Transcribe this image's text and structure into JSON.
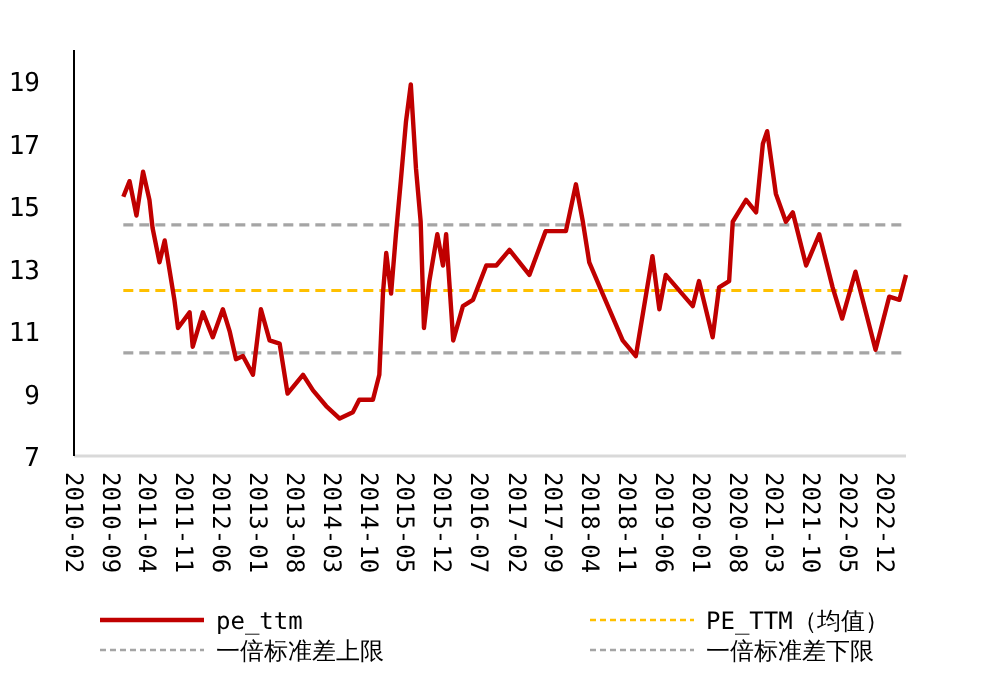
{
  "chart_data": {
    "type": "line",
    "legend": "bottom",
    "xlim": [
      "2010-02",
      "2023-04"
    ],
    "ylim": [
      7,
      20
    ],
    "yticks": [
      7,
      9,
      11,
      13,
      15,
      17,
      19
    ],
    "xticks": [
      "2010-02",
      "2010-09",
      "2011-04",
      "2011-11",
      "2012-06",
      "2013-01",
      "2013-08",
      "2014-03",
      "2014-10",
      "2015-05",
      "2015-12",
      "2016-07",
      "2017-02",
      "2017-09",
      "2018-04",
      "2018-11",
      "2019-06",
      "2020-01",
      "2020-08",
      "2021-03",
      "2021-10",
      "2022-05",
      "2022-12"
    ],
    "series": [
      {
        "name": "pe_ttm",
        "color": "#c00000",
        "line_style": "solid",
        "x": [
          "2010-11-13",
          "2010-12-19",
          "2011-01-28",
          "2011-03-07",
          "2011-04-13",
          "2011-05-01",
          "2011-06-10",
          "2011-07-10",
          "2011-09-04",
          "2011-09-25",
          "2011-12-01",
          "2011-12-19",
          "2012-02-16",
          "2012-04-13",
          "2012-06-10",
          "2012-07-19",
          "2012-08-25",
          "2012-10-04",
          "2012-12-01",
          "2013-01-16",
          "2013-03-07",
          "2013-05-04",
          "2013-06-19",
          "2013-09-16",
          "2013-11-13",
          "2014-01-28",
          "2014-04-16",
          "2014-07-01",
          "2014-08-07",
          "2014-10-25",
          "2014-12-01",
          "2014-12-22",
          "2015-01-10",
          "2015-02-07",
          "2015-03-07",
          "2015-04-04",
          "2015-05-04",
          "2015-06-01",
          "2015-07-01",
          "2015-07-28",
          "2015-08-16",
          "2015-09-16",
          "2015-11-01",
          "2015-12-04",
          "2015-12-22",
          "2016-02-01",
          "2016-03-28",
          "2016-05-25",
          "2016-08-10",
          "2016-10-07",
          "2016-12-22",
          "2017-04-16",
          "2017-07-19",
          "2017-11-13",
          "2018-01-10",
          "2018-02-19",
          "2018-03-28",
          "2018-06-13",
          "2018-10-07",
          "2018-12-22",
          "2019-03-28",
          "2019-05-07",
          "2019-06-13",
          "2019-11-16",
          "2019-12-22",
          "2020-03-10",
          "2020-04-16",
          "2020-06-13",
          "2020-07-04",
          "2020-09-19",
          "2020-11-16",
          "2020-12-25",
          "2021-01-19",
          "2021-03-10",
          "2021-05-07",
          "2021-06-16",
          "2021-09-01",
          "2021-11-16",
          "2022-02-01",
          "2022-03-28",
          "2022-06-13",
          "2022-10-07",
          "2022-12-25",
          "2023-02-22",
          "2023-04-01"
        ],
        "values": [
          15.3,
          15.8,
          14.7,
          16.1,
          15.2,
          14.3,
          13.2,
          13.9,
          12.0,
          11.1,
          11.6,
          10.5,
          11.6,
          10.8,
          11.7,
          11.0,
          10.1,
          10.2,
          9.6,
          11.7,
          10.7,
          10.6,
          9.0,
          9.6,
          9.1,
          8.6,
          8.2,
          8.4,
          8.8,
          8.8,
          9.6,
          12.2,
          13.5,
          12.2,
          14.1,
          15.8,
          17.7,
          18.9,
          16.2,
          14.5,
          11.1,
          12.6,
          14.1,
          13.1,
          14.1,
          10.7,
          11.8,
          12.0,
          13.1,
          13.1,
          13.6,
          12.8,
          14.2,
          14.2,
          15.7,
          14.5,
          13.2,
          12.2,
          10.7,
          10.2,
          13.4,
          11.7,
          12.8,
          11.8,
          12.6,
          10.8,
          12.4,
          12.6,
          14.5,
          15.2,
          14.8,
          17.0,
          17.4,
          15.4,
          14.5,
          14.8,
          13.1,
          14.1,
          12.4,
          11.4,
          12.9,
          10.4,
          12.1,
          12.0,
          12.8
        ]
      },
      {
        "name": "PE_TTM（均值）",
        "color": "#ffc000",
        "line_style": "dashed",
        "x": [
          "2010-11-13",
          "2023-04-01"
        ],
        "values": [
          12.3,
          12.3
        ]
      },
      {
        "name": "一倍标准差上限",
        "color": "#a5a5a5",
        "line_style": "dashed",
        "x": [
          "2010-11-13",
          "2023-04-01"
        ],
        "values": [
          14.4,
          14.4
        ]
      },
      {
        "name": "一倍标准差下限",
        "color": "#a5a5a5",
        "line_style": "dashed",
        "x": [
          "2010-11-13",
          "2023-04-01"
        ],
        "values": [
          10.3,
          10.3
        ]
      }
    ]
  }
}
